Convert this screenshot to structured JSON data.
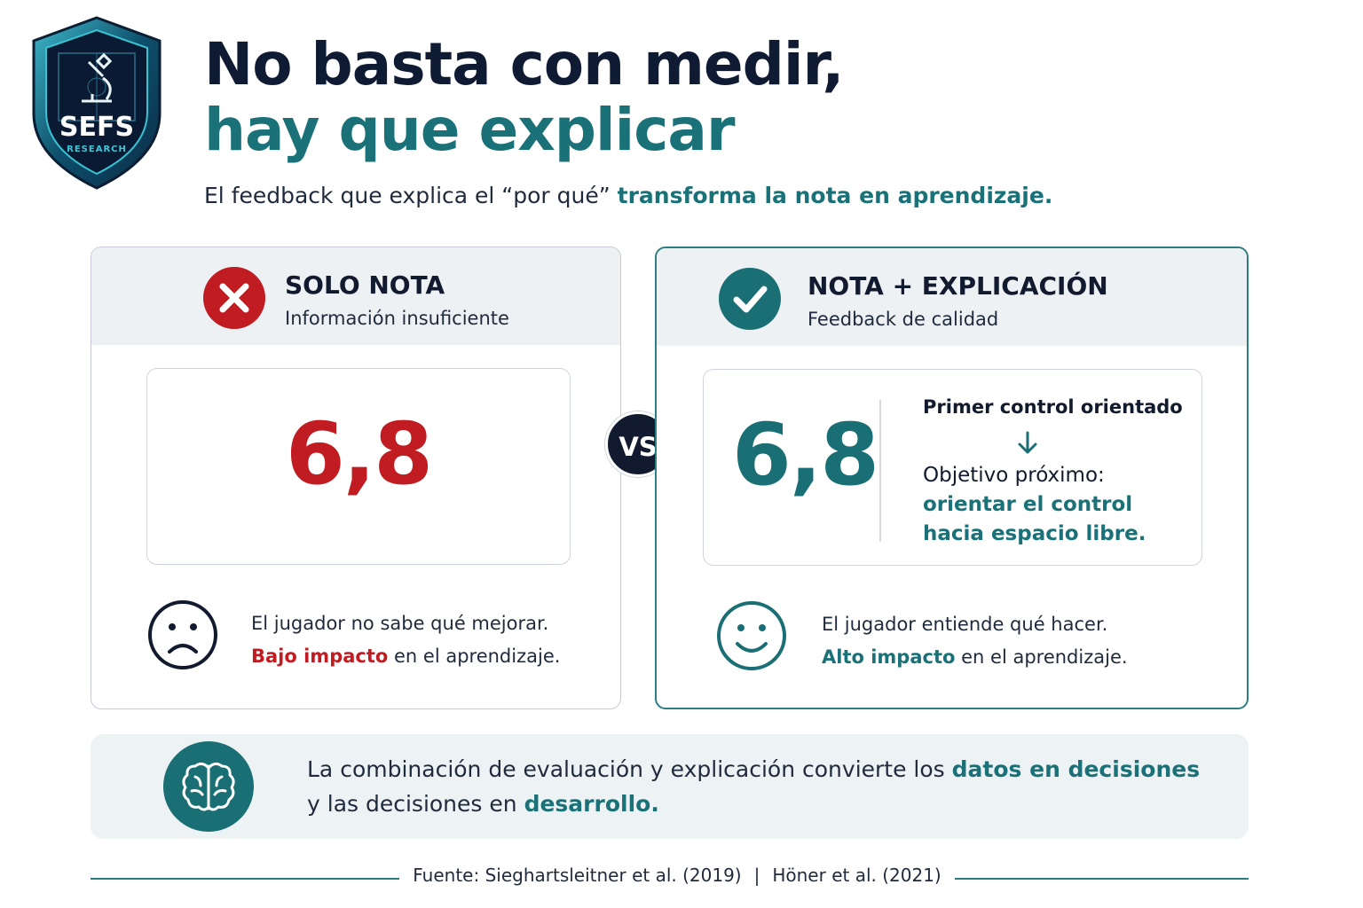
{
  "logo": {
    "name": "SEFS",
    "sub": "RESEARCH"
  },
  "title": {
    "line1": "No basta con medir,",
    "line2": "hay que explicar"
  },
  "subtitle": {
    "text": "El feedback que explica el “por qué” ",
    "highlight": "transforma la nota en aprendizaje."
  },
  "left_panel": {
    "title": "SOLO NOTA",
    "subtitle": "Información insuficiente",
    "score": "6,8",
    "message_line1": "El jugador no sabe qué mejorar.",
    "impact": "Bajo impacto",
    "impact_rest": " en el aprendizaje."
  },
  "vs_label": "VS",
  "right_panel": {
    "title": "NOTA + EXPLICACIÓN",
    "subtitle": "Feedback de calidad",
    "score": "6,8",
    "control": "Primer control orientado",
    "objective_label": "Objetivo próximo:",
    "objective_line1": "orientar el control",
    "objective_line2": "hacia espacio libre.",
    "message_line1": "El jugador entiende qué hacer.",
    "impact": "Alto impacto",
    "impact_rest": " en el aprendizaje."
  },
  "bottom": {
    "text1": "La combinación de evaluación y explicación convierte los ",
    "hl1": "datos en decisiones",
    "text2": "y las decisiones en ",
    "hl2": "desarrollo",
    "text3": "."
  },
  "source": {
    "part1": "Fuente: Sieghartsleitner et al. (2019)",
    "separator": "|",
    "part2": "Höner et al. (2021)"
  },
  "colors": {
    "accent_teal": "#1a7278",
    "accent_red": "#c01c22",
    "navy": "#111a2f",
    "panel_head": "#edf1f4"
  }
}
